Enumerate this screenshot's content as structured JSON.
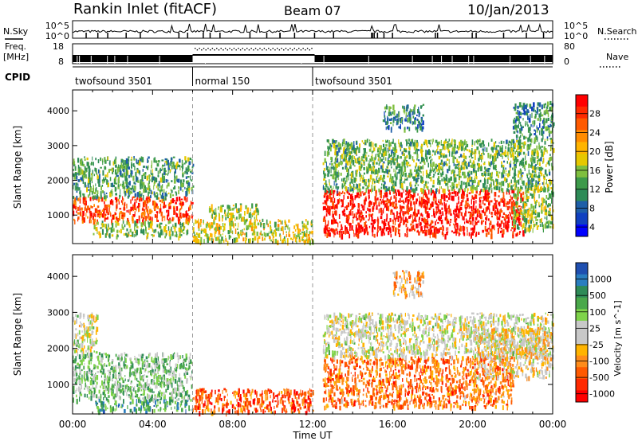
{
  "header": {
    "station": "Rankin Inlet (fitACF)",
    "beam": "Beam 07",
    "date": "10/Jan/2013"
  },
  "summary_panels": {
    "nsky_label": "N.Sky",
    "nsearch_label": "N.Search",
    "nsky_ticks": [
      "10^5",
      "10^0"
    ],
    "nsearch_ticks": [
      "10^5",
      "10^0"
    ],
    "freq_label_1": "Freq.",
    "freq_label_2": "[MHz]",
    "freq_ticks": [
      "18",
      "8"
    ],
    "nave_label": "Nave",
    "nave_ticks": [
      "80",
      "0"
    ],
    "cpid_label": "CPID",
    "cpid_segments": [
      {
        "label": "twofsound 3501",
        "start_hour": 0,
        "end_hour": 6
      },
      {
        "label": "normal 150",
        "start_hour": 6,
        "end_hour": 12
      },
      {
        "label": "twofsound 3501",
        "start_hour": 12,
        "end_hour": 24
      }
    ]
  },
  "chart_data": [
    {
      "type": "heatmap",
      "name": "power",
      "ylabel": "Slant Range [km]",
      "xlabel": "Time UT",
      "xlim": [
        0,
        24
      ],
      "ylim": [
        180,
        4600
      ],
      "x_ticks": [
        "00:00",
        "04:00",
        "08:00",
        "12:00",
        "16:00",
        "20:00",
        "00:00"
      ],
      "y_ticks": [
        "1000",
        "2000",
        "3000",
        "4000"
      ],
      "colorbar": {
        "label": "Power [dB]",
        "ticks": [
          "28",
          "24",
          "20",
          "16",
          "12",
          "8",
          "4"
        ],
        "colors": [
          "#ff0000",
          "#ff2a00",
          "#ff5a00",
          "#ff8c00",
          "#ffb400",
          "#e6c800",
          "#7fbf3f",
          "#3d9a4a",
          "#2e8b57",
          "#1e5fa8",
          "#1040c0",
          "#0000ff"
        ]
      },
      "regions": [
        {
          "t0": 0.0,
          "t1": 6.0,
          "r0": 850,
          "r1": 1550,
          "level": 0.85
        },
        {
          "t0": 0.0,
          "t1": 6.0,
          "r0": 1550,
          "r1": 2700,
          "level": 0.35
        },
        {
          "t0": 1.0,
          "t1": 5.8,
          "r0": 400,
          "r1": 850,
          "level": 0.45
        },
        {
          "t0": 6.0,
          "t1": 12.0,
          "r0": 250,
          "r1": 900,
          "level": 0.55
        },
        {
          "t0": 6.8,
          "t1": 9.3,
          "r0": 900,
          "r1": 1350,
          "level": 0.5
        },
        {
          "t0": 12.5,
          "t1": 22.5,
          "r0": 450,
          "r1": 1750,
          "level": 0.95
        },
        {
          "t0": 12.5,
          "t1": 24.0,
          "r0": 1750,
          "r1": 3200,
          "level": 0.4
        },
        {
          "t0": 15.5,
          "t1": 17.5,
          "r0": 3500,
          "r1": 4200,
          "level": 0.3
        },
        {
          "t0": 22.0,
          "t1": 24.0,
          "r0": 600,
          "r1": 1900,
          "level": 0.45
        },
        {
          "t0": 22.0,
          "t1": 24.0,
          "r0": 3200,
          "r1": 4300,
          "level": 0.3
        }
      ]
    },
    {
      "type": "heatmap",
      "name": "velocity",
      "ylabel": "Slant Range [km]",
      "xlabel": "Time UT",
      "xlim": [
        0,
        24
      ],
      "ylim": [
        180,
        4600
      ],
      "x_ticks": [
        "00:00",
        "04:00",
        "08:00",
        "12:00",
        "16:00",
        "20:00",
        "00:00"
      ],
      "y_ticks": [
        "1000",
        "2000",
        "3000",
        "4000"
      ],
      "colorbar": {
        "label": "Velocity [m s^-1]",
        "ticks": [
          "1000",
          "500",
          "100",
          "25",
          "-25",
          "-100",
          "-500",
          "-1000"
        ],
        "colors": [
          "#1f4fb0",
          "#2a7ec0",
          "#2e8b57",
          "#4aa84a",
          "#7fd34a",
          "#c8c8c8",
          "#c8c8c8",
          "#ffb400",
          "#ff8c1a",
          "#ff5a00",
          "#ff2a00",
          "#ff0000"
        ]
      },
      "regions": [
        {
          "t0": 0.0,
          "t1": 6.0,
          "r0": 600,
          "r1": 1900,
          "level": 0.65
        },
        {
          "t0": 0.0,
          "t1": 1.2,
          "r0": 1900,
          "r1": 3000,
          "level": 0.5
        },
        {
          "t0": 1.0,
          "t1": 6.0,
          "r0": 300,
          "r1": 600,
          "level": 0.75
        },
        {
          "t0": 6.0,
          "t1": 12.0,
          "r0": 250,
          "r1": 900,
          "level": 0.2
        },
        {
          "t0": 12.5,
          "t1": 22.0,
          "r0": 400,
          "r1": 1800,
          "level": 0.25
        },
        {
          "t0": 12.5,
          "t1": 24.0,
          "r0": 1800,
          "r1": 3000,
          "level": 0.5
        },
        {
          "t0": 20.0,
          "t1": 24.0,
          "r0": 1200,
          "r1": 2600,
          "level": 0.45
        },
        {
          "t0": 16.0,
          "t1": 17.5,
          "r0": 3500,
          "r1": 4200,
          "level": 0.35
        }
      ]
    }
  ]
}
